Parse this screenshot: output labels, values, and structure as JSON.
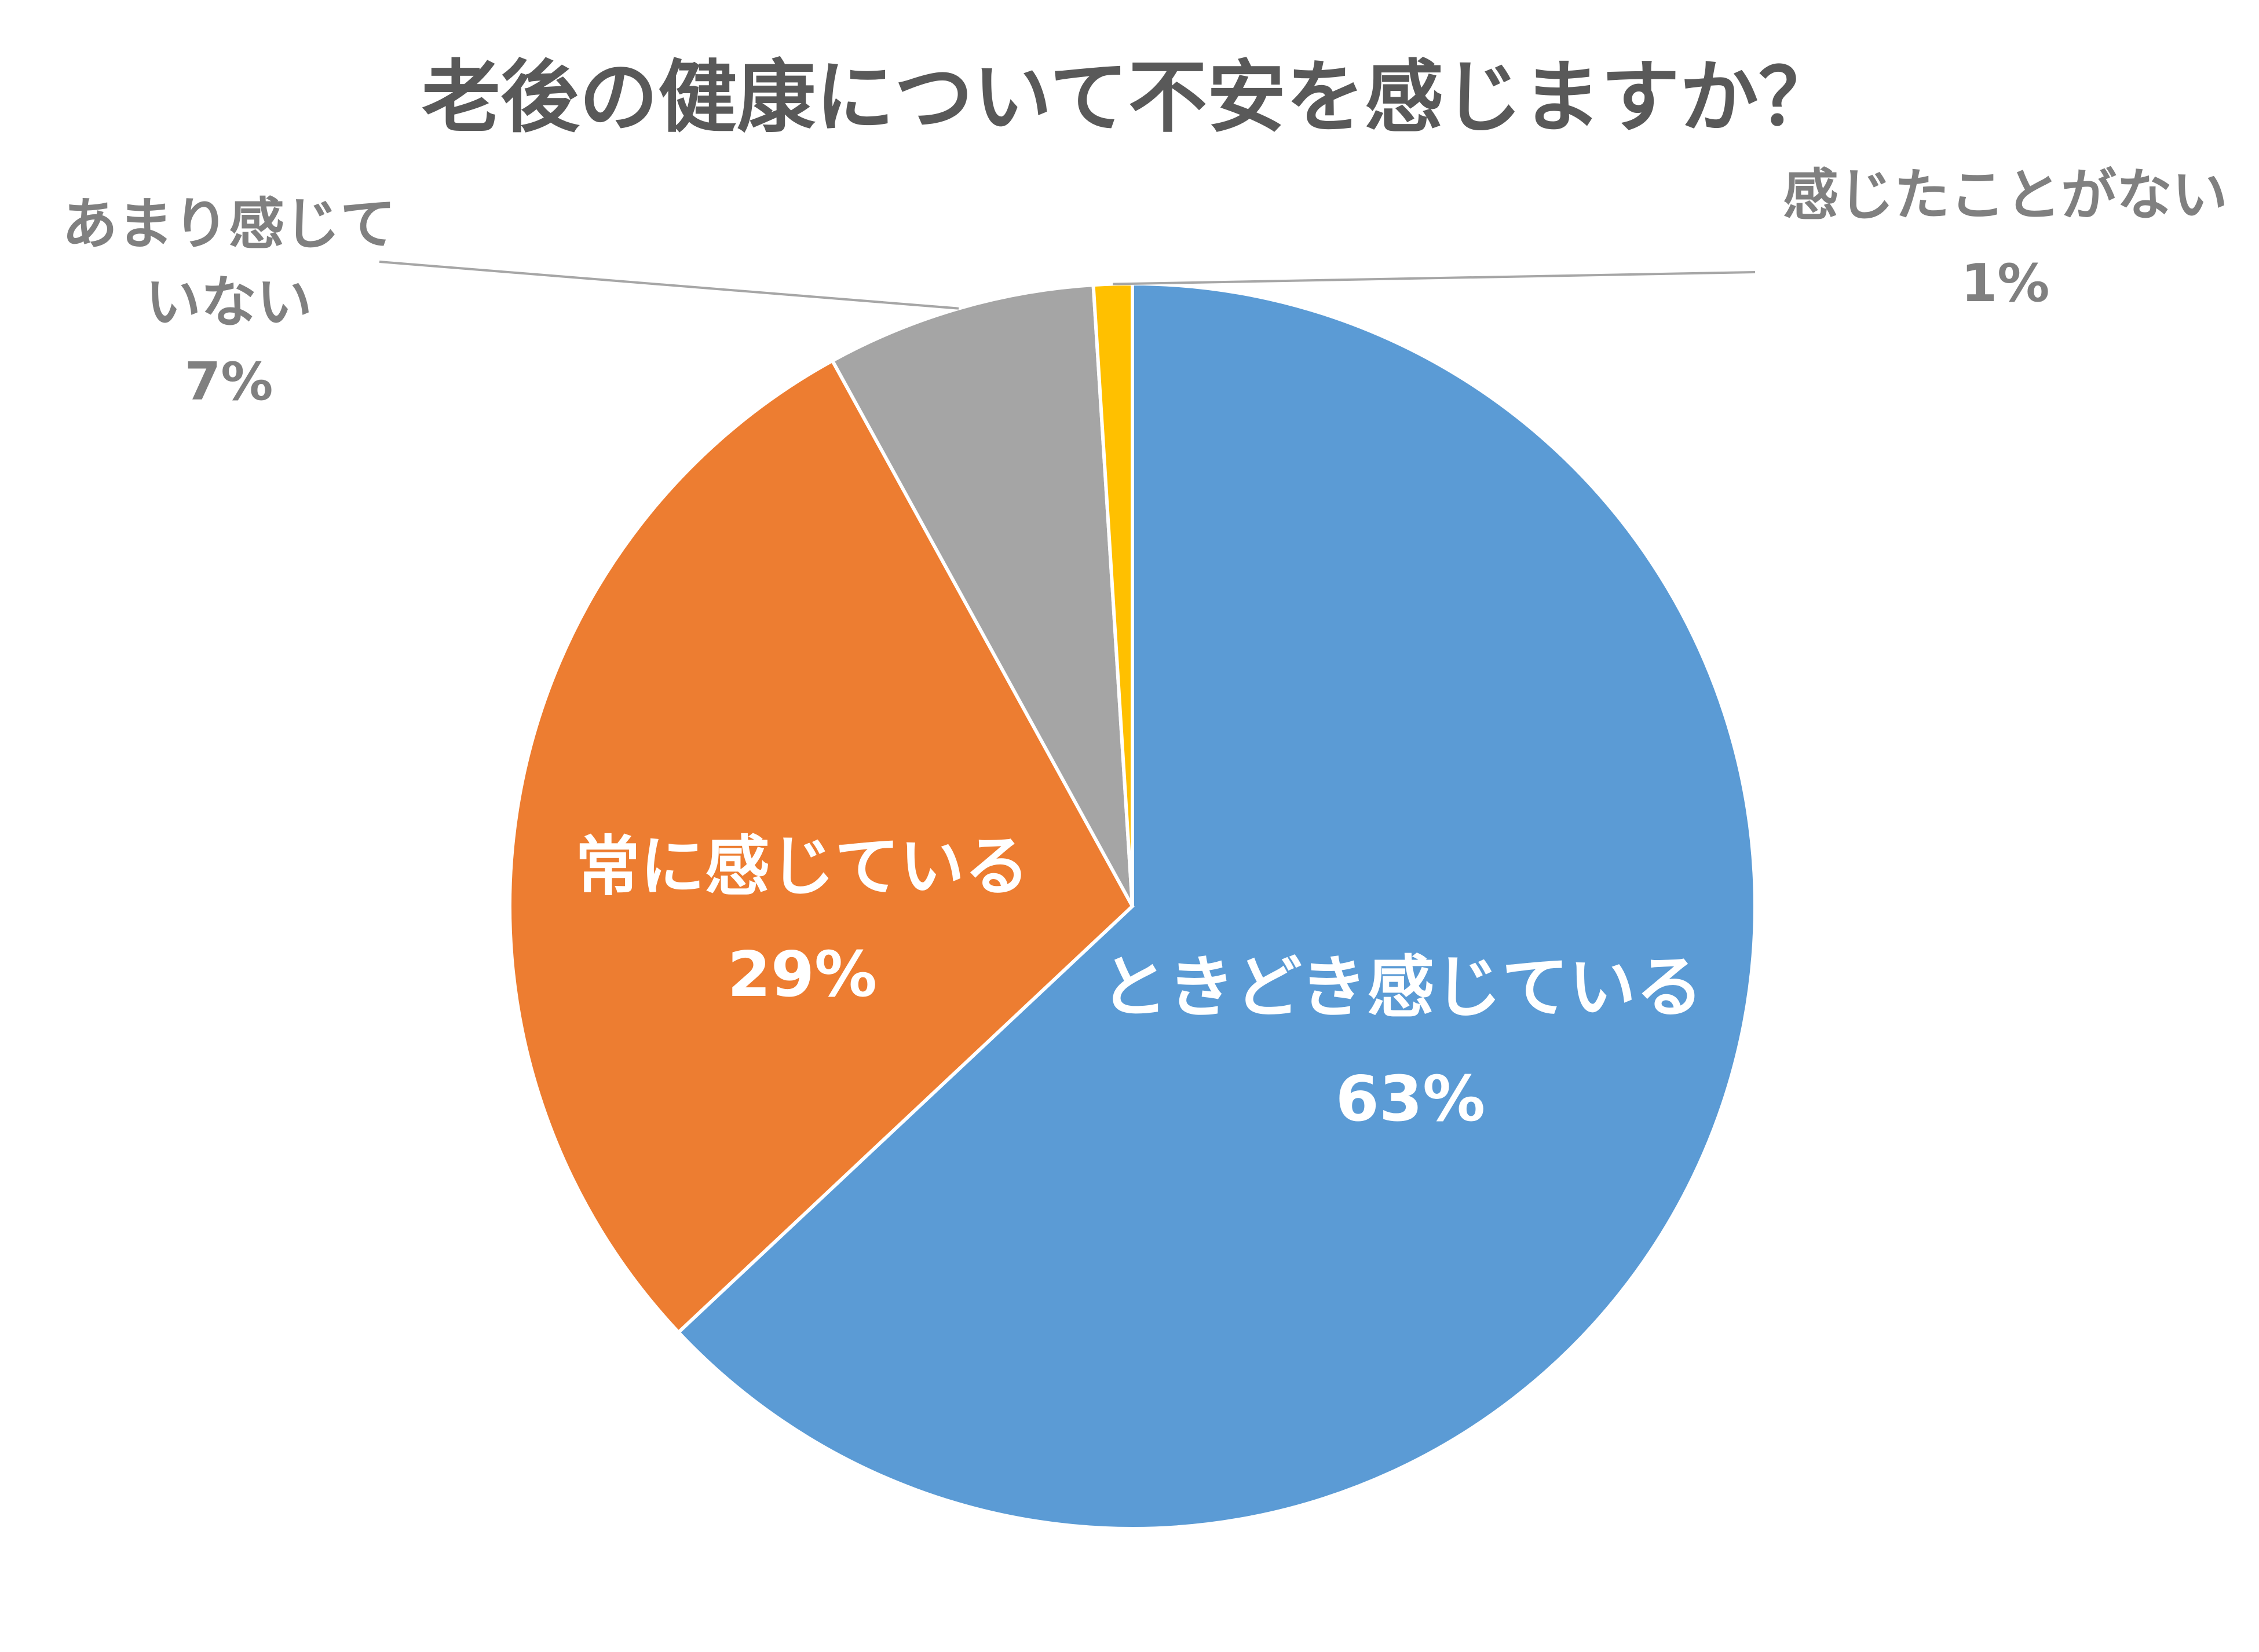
{
  "chart_data": {
    "type": "pie",
    "title": "老後の健康について不安を感じますか？",
    "start_angle_deg": 0,
    "direction": "clockwise",
    "slices": [
      {
        "label": "ときどき感じている",
        "value": 63,
        "value_label": "63%",
        "color": "#5B9BD5",
        "label_position": "inside"
      },
      {
        "label": "常に感じている",
        "value": 29,
        "value_label": "29%",
        "color": "#ED7D31",
        "label_position": "inside"
      },
      {
        "label": "あまり感じていない",
        "label_lines": [
          "あまり感じて",
          "いない"
        ],
        "value": 7,
        "value_label": "7%",
        "color": "#A5A5A5",
        "label_position": "outside"
      },
      {
        "label": "感じたことがない",
        "value": 1,
        "value_label": "1%",
        "color": "#FFC000",
        "label_position": "outside"
      }
    ],
    "legend": "none"
  }
}
